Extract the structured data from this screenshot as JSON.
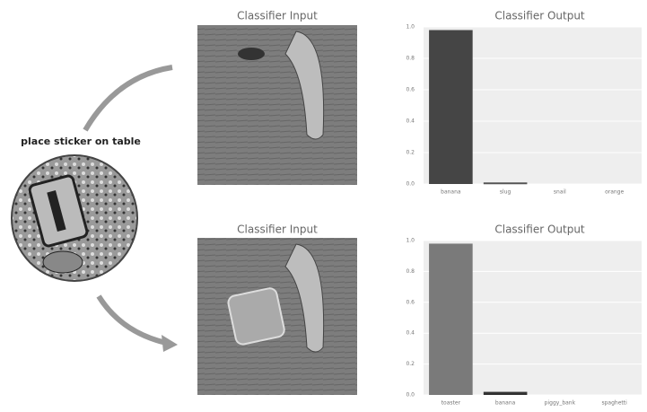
{
  "label": "place sticker on table",
  "input_titles": [
    "Classifier Input",
    "Classifier Input"
  ],
  "chart_data": [
    {
      "type": "bar",
      "title": "Classifier Output",
      "categories": [
        "banana",
        "slug",
        "snail",
        "orange"
      ],
      "values": [
        0.98,
        0.01,
        0,
        0
      ],
      "colors": [
        "#454545",
        "#555555",
        "#555555",
        "#555555"
      ],
      "ylim": [
        0,
        1
      ],
      "yticks": [
        {
          "value": 0,
          "label": "0.0"
        },
        {
          "value": 0.2,
          "label": "0.2"
        },
        {
          "value": 0.4,
          "label": "0.4"
        },
        {
          "value": 0.6,
          "label": "0.6"
        },
        {
          "value": 0.8,
          "label": "0.8"
        },
        {
          "value": 1,
          "label": "1.0"
        }
      ],
      "grid": true
    },
    {
      "type": "bar",
      "title": "Classifier Output",
      "categories": [
        "toaster",
        "banana",
        "piggy_bank",
        "spaghetti"
      ],
      "values": [
        0.98,
        0.02,
        0,
        0
      ],
      "colors": [
        "#7a7a7a",
        "#333333",
        "#555555",
        "#555555"
      ],
      "ylim": [
        0,
        1
      ],
      "yticks": [
        {
          "value": 0,
          "label": "0.0"
        },
        {
          "value": 0.2,
          "label": "0.2"
        },
        {
          "value": 0.4,
          "label": "0.4"
        },
        {
          "value": 0.6,
          "label": "0.6"
        },
        {
          "value": 0.8,
          "label": "0.8"
        },
        {
          "value": 1,
          "label": "1.0"
        }
      ],
      "grid": true
    }
  ]
}
